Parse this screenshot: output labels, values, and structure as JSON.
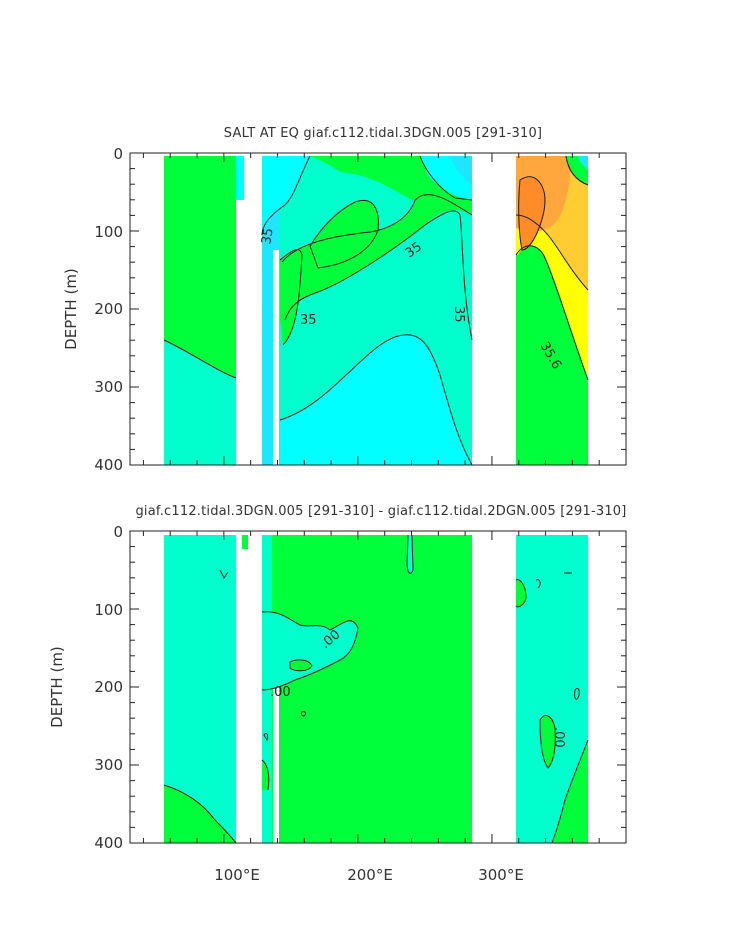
{
  "colors": {
    "green": "#00ff3b",
    "aqua_green": "#00ffcc",
    "cyan": "#00ffff",
    "sky": "#1ee6ff",
    "light_orange": "#ffa63c",
    "orange": "#ff8c28",
    "yellow_orange": "#ffcc33",
    "yellow": "#ffff00"
  },
  "chart_data": [
    {
      "type": "heatmap",
      "title": "SALT AT EQ giaf.c112.tidal.3DGN.005 [291-310]",
      "xlabel": "",
      "ylabel": "DEPTH (m)",
      "xlim_deg_east": [
        30,
        400
      ],
      "ylim_m": [
        400,
        0
      ],
      "xticks": [
        "100°E",
        "200°E",
        "300°E"
      ],
      "xtick_values": [
        100,
        200,
        300
      ],
      "yticks": [
        "0",
        "100",
        "200",
        "300",
        "400"
      ],
      "ytick_values": [
        0,
        100,
        200,
        300,
        400
      ],
      "contour_labels": [
        "35",
        "35",
        "35",
        "35",
        "35.6"
      ],
      "land_gaps_deg_east": [
        [
          99,
          119
        ],
        [
          279,
          315
        ]
      ],
      "grid": false
    },
    {
      "type": "heatmap",
      "title": "giaf.c112.tidal.3DGN.005 [291-310] - giaf.c112.tidal.2DGN.005 [291-310]",
      "xlabel": "",
      "ylabel": "DEPTH (m)",
      "xlim_deg_east": [
        30,
        400
      ],
      "ylim_m": [
        400,
        0
      ],
      "xticks": [
        "100°E",
        "200°E",
        "300°E"
      ],
      "xtick_values": [
        100,
        200,
        300
      ],
      "yticks": [
        "0",
        "100",
        "200",
        "300",
        "400"
      ],
      "ytick_values": [
        0,
        100,
        200,
        300,
        400
      ],
      "contour_labels": [
        ".00",
        ".00",
        ".00"
      ],
      "land_gaps_deg_east": [
        [
          99,
          108
        ],
        [
          279,
          315
        ]
      ],
      "grid": false
    }
  ]
}
